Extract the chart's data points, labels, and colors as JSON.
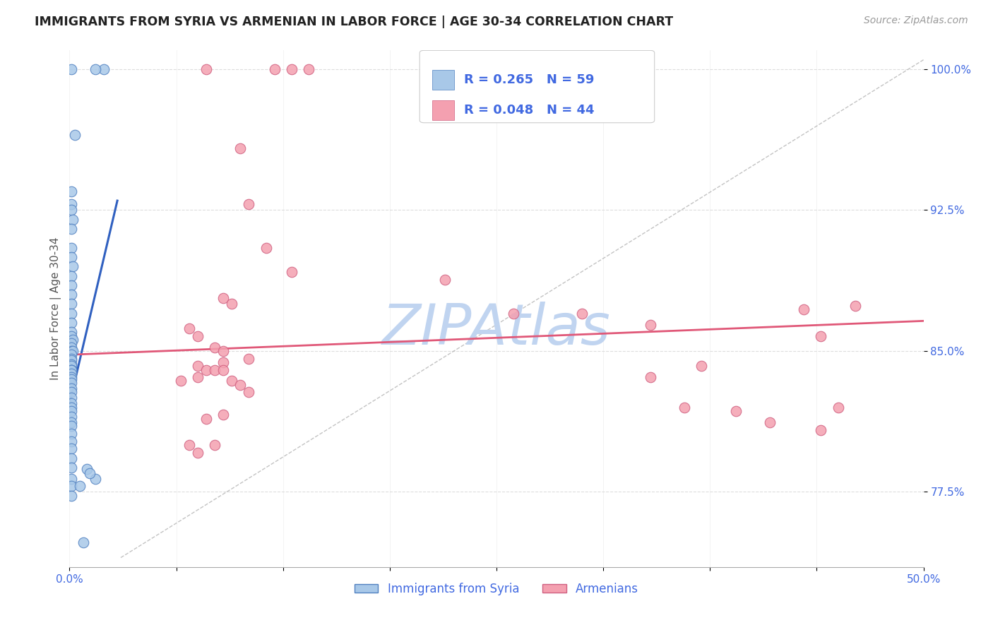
{
  "title": "IMMIGRANTS FROM SYRIA VS ARMENIAN IN LABOR FORCE | AGE 30-34 CORRELATION CHART",
  "source": "Source: ZipAtlas.com",
  "ylabel": "In Labor Force | Age 30-34",
  "xlim": [
    0.0,
    0.5
  ],
  "ylim": [
    0.735,
    1.01
  ],
  "xticks": [
    0.0,
    0.0625,
    0.125,
    0.1875,
    0.25,
    0.3125,
    0.375,
    0.4375,
    0.5
  ],
  "xtick_labels": [
    "0.0%",
    "",
    "",
    "",
    "",
    "",
    "",
    "",
    "50.0%"
  ],
  "yticks": [
    0.775,
    0.85,
    0.925,
    1.0
  ],
  "ytick_labels": [
    "77.5%",
    "85.0%",
    "92.5%",
    "100.0%"
  ],
  "blue_color": "#a8c8e8",
  "pink_color": "#f4a0b0",
  "blue_edge_color": "#5080c0",
  "pink_edge_color": "#d06080",
  "blue_line_color": "#3060c0",
  "pink_line_color": "#e05878",
  "diag_line_color": "#aaaaaa",
  "legend_R1": "R = 0.265",
  "legend_N1": "N = 59",
  "legend_R2": "R = 0.048",
  "legend_N2": "N = 44",
  "legend_label1": "Immigrants from Syria",
  "legend_label2": "Armenians",
  "watermark": "ZIPAtlas",
  "watermark_color": "#c0d4f0",
  "syria_x": [
    0.001,
    0.003,
    0.001,
    0.001,
    0.001,
    0.002,
    0.001,
    0.001,
    0.001,
    0.002,
    0.001,
    0.001,
    0.001,
    0.001,
    0.001,
    0.001,
    0.001,
    0.001,
    0.002,
    0.001,
    0.001,
    0.001,
    0.002,
    0.001,
    0.001,
    0.001,
    0.001,
    0.001,
    0.001,
    0.001,
    0.001,
    0.001,
    0.001,
    0.001,
    0.001,
    0.001,
    0.001,
    0.001,
    0.001,
    0.001,
    0.001,
    0.001,
    0.001,
    0.001,
    0.001,
    0.001,
    0.001,
    0.001,
    0.001,
    0.001,
    0.001,
    0.001,
    0.015,
    0.01,
    0.006,
    0.02,
    0.015,
    0.012,
    0.008
  ],
  "syria_y": [
    1.0,
    0.965,
    0.935,
    0.928,
    0.925,
    0.92,
    0.915,
    0.905,
    0.9,
    0.895,
    0.89,
    0.885,
    0.88,
    0.875,
    0.87,
    0.865,
    0.86,
    0.858,
    0.856,
    0.854,
    0.852,
    0.85,
    0.85,
    0.848,
    0.846,
    0.845,
    0.843,
    0.842,
    0.84,
    0.84,
    0.84,
    0.838,
    0.836,
    0.835,
    0.833,
    0.83,
    0.828,
    0.825,
    0.822,
    0.82,
    0.818,
    0.815,
    0.812,
    0.81,
    0.806,
    0.802,
    0.798,
    0.793,
    0.788,
    0.782,
    0.778,
    0.773,
    0.782,
    0.787,
    0.778,
    1.0,
    1.0,
    0.785,
    0.748
  ],
  "armenia_x": [
    0.08,
    0.12,
    0.13,
    0.14,
    0.1,
    0.105,
    0.115,
    0.13,
    0.09,
    0.095,
    0.07,
    0.075,
    0.085,
    0.09,
    0.105,
    0.09,
    0.075,
    0.08,
    0.085,
    0.09,
    0.075,
    0.065,
    0.095,
    0.1,
    0.105,
    0.09,
    0.08,
    0.085,
    0.07,
    0.075,
    0.22,
    0.26,
    0.3,
    0.34,
    0.37,
    0.34,
    0.36,
    0.39,
    0.41,
    0.44,
    0.46,
    0.43,
    0.44,
    0.45
  ],
  "armenia_y": [
    1.0,
    1.0,
    1.0,
    1.0,
    0.958,
    0.928,
    0.905,
    0.892,
    0.878,
    0.875,
    0.862,
    0.858,
    0.852,
    0.85,
    0.846,
    0.844,
    0.842,
    0.84,
    0.84,
    0.84,
    0.836,
    0.834,
    0.834,
    0.832,
    0.828,
    0.816,
    0.814,
    0.8,
    0.8,
    0.796,
    0.888,
    0.87,
    0.87,
    0.864,
    0.842,
    0.836,
    0.82,
    0.818,
    0.812,
    0.808,
    0.874,
    0.872,
    0.858,
    0.82
  ],
  "blue_line_x": [
    0.0,
    0.028
  ],
  "blue_line_y": [
    0.822,
    0.93
  ],
  "pink_line_x": [
    0.0,
    0.5
  ],
  "pink_line_y": [
    0.848,
    0.866
  ],
  "diag_line_x": [
    0.03,
    0.5
  ],
  "diag_line_y": [
    0.74,
    1.005
  ]
}
